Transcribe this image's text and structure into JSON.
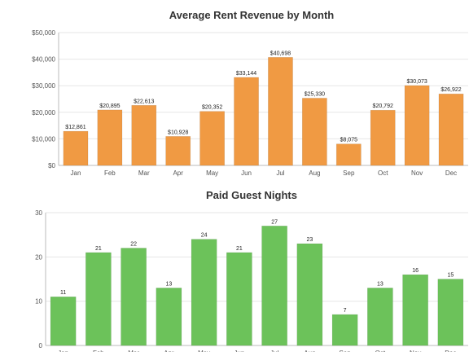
{
  "chart_data": [
    {
      "type": "bar",
      "title": "Average Rent Revenue by Month",
      "categories": [
        "Jan",
        "Feb",
        "Mar",
        "Apr",
        "May",
        "Jun",
        "Jul",
        "Aug",
        "Sep",
        "Oct",
        "Nov",
        "Dec"
      ],
      "values": [
        12861,
        20895,
        22613,
        10928,
        20352,
        33144,
        40698,
        25330,
        8075,
        20792,
        30073,
        26922
      ],
      "data_labels": [
        "$12,861",
        "$20,895",
        "$22,613",
        "$10,928",
        "$20,352",
        "$33,144",
        "$40,698",
        "$25,330",
        "$8,075",
        "$20,792",
        "$30,073",
        "$26,922"
      ],
      "y_ticks": [
        "$0",
        "$10,000",
        "$20,000",
        "$30,000",
        "$40,000",
        "$50,000"
      ],
      "ylim": [
        0,
        50000
      ],
      "grid": true,
      "color": "#f09a43"
    },
    {
      "type": "bar",
      "title": "Paid Guest Nights",
      "categories": [
        "Jan",
        "Feb",
        "Mar",
        "Apr",
        "May",
        "Jun",
        "Jul",
        "Aug",
        "Sep",
        "Oct",
        "Nov",
        "Dec"
      ],
      "values": [
        11,
        21,
        22,
        13,
        24,
        21,
        27,
        23,
        7,
        13,
        16,
        15
      ],
      "data_labels": [
        "11",
        "21",
        "22",
        "13",
        "24",
        "21",
        "27",
        "23",
        "7",
        "13",
        "16",
        "15"
      ],
      "y_ticks": [
        "0",
        "10",
        "20",
        "30"
      ],
      "ylim": [
        0,
        30
      ],
      "grid": true,
      "color": "#6cc25a"
    }
  ]
}
